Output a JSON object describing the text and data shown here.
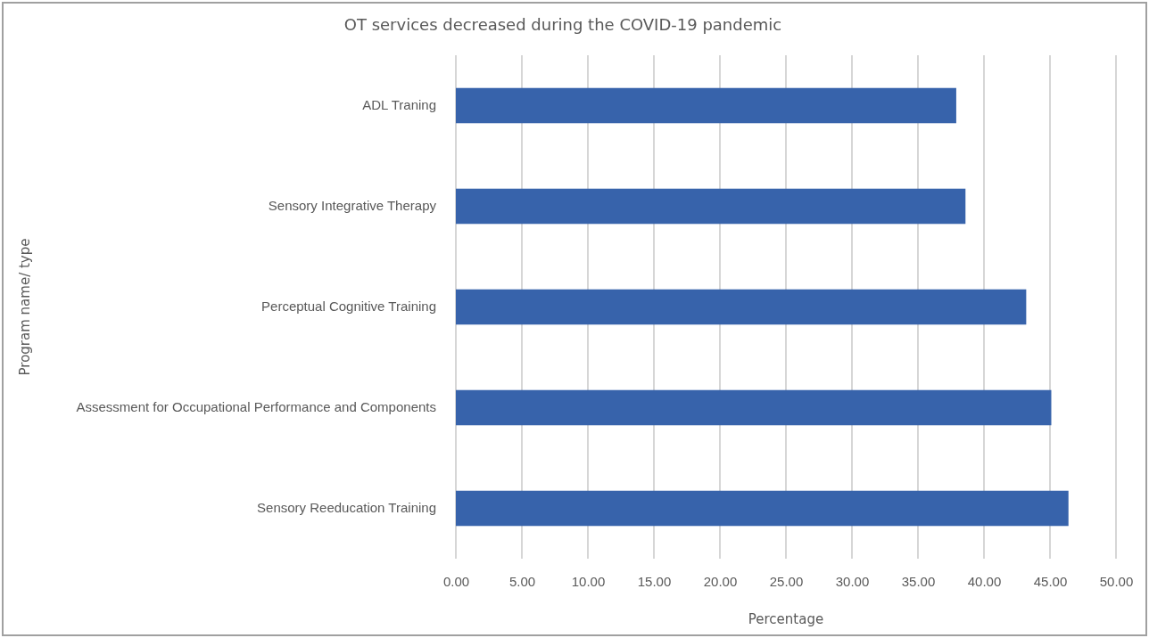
{
  "chart_data": {
    "type": "bar",
    "orientation": "horizontal",
    "title": "OT services decreased during the COVID-19 pandemic",
    "xlabel": "Percentage",
    "ylabel": "Program name/ type",
    "categories": [
      "ADL Traning",
      "Sensory Integrative Therapy",
      "Perceptual Cognitive Training",
      "Assessment for Occupational Performance and Components",
      "Sensory Reeducation Training"
    ],
    "values": [
      37.9,
      38.6,
      43.2,
      45.1,
      46.4
    ],
    "color": "#3763ab",
    "xlim": [
      0,
      50
    ],
    "xticks": [
      {
        "value": 0,
        "label": "0.00"
      },
      {
        "value": 5,
        "label": "5.00"
      },
      {
        "value": 10,
        "label": "10.00"
      },
      {
        "value": 15,
        "label": "15.00"
      },
      {
        "value": 20,
        "label": "20.00"
      },
      {
        "value": 25,
        "label": "25.00"
      },
      {
        "value": 30,
        "label": "30.00"
      },
      {
        "value": 35,
        "label": "35.00"
      },
      {
        "value": 40,
        "label": "40.00"
      },
      {
        "value": 45,
        "label": "45.00"
      },
      {
        "value": 50,
        "label": "50.00"
      }
    ],
    "grid": "x"
  }
}
